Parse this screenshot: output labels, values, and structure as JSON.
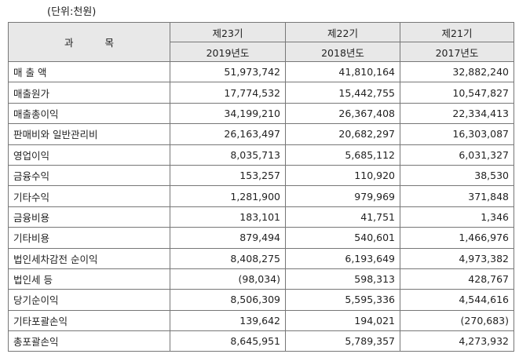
{
  "header": {
    "unit": "(단위:천원)"
  },
  "table": {
    "subject": "과 목",
    "periods": [
      "제23기",
      "제22기",
      "제21기"
    ],
    "years": [
      "2019년도",
      "2018년도",
      "2017년도"
    ],
    "rows": [
      [
        "매 출 액",
        "51,973,742",
        "41,810,164",
        "32,882,240"
      ],
      [
        "매출원가",
        "17,774,532",
        "15,442,755",
        "10,547,827"
      ],
      [
        "매출총이익",
        "34,199,210",
        "26,367,408",
        "22,334,413"
      ],
      [
        "판매비와 일반관리비",
        "26,163,497",
        "20,682,297",
        "16,303,087"
      ],
      [
        "영업이익",
        "8,035,713",
        "5,685,112",
        "6,031,327"
      ],
      [
        "금융수익",
        "153,257",
        "110,920",
        "38,530"
      ],
      [
        "기타수익",
        "1,281,900",
        "979,969",
        "371,848"
      ],
      [
        "금융비용",
        "183,101",
        "41,751",
        "1,346"
      ],
      [
        "기타비용",
        "879,494",
        "540,601",
        "1,466,976"
      ],
      [
        "법인세차감전 순이익",
        "8,408,275",
        "6,193,649",
        "4,973,382"
      ],
      [
        "법인세 등",
        "(98,034)",
        "598,313",
        "428,767"
      ],
      [
        "당기순이익",
        "8,506,309",
        "5,595,336",
        "4,544,616"
      ],
      [
        "기타포괄손익",
        "139,642",
        "194,021",
        "(270,683)"
      ],
      [
        "총포괄손익",
        "8,645,951",
        "5,789,357",
        "4,273,932"
      ]
    ]
  }
}
